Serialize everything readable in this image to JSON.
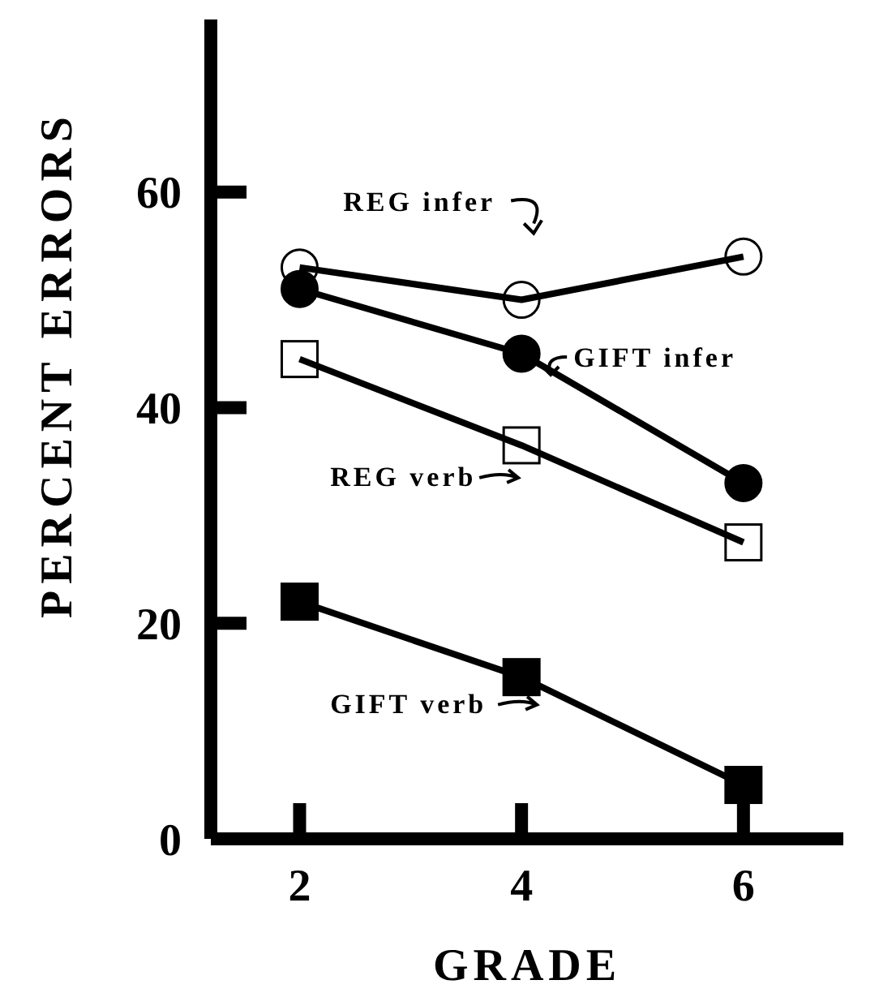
{
  "chart_data": {
    "type": "line",
    "xlabel": "GRADE",
    "ylabel": "PERCENT ERRORS",
    "x": [
      2,
      4,
      6
    ],
    "xlim": [
      1.2,
      6.9
    ],
    "xticks": [
      2,
      4,
      6
    ],
    "ylim": [
      0,
      76
    ],
    "yticks": [
      0,
      20,
      40,
      60
    ],
    "grid": false,
    "legend": "center",
    "line_style": "solid",
    "series": [
      {
        "name": "REG infer",
        "color": "#000000",
        "marker": "circle",
        "values": [
          53,
          50,
          54
        ]
      },
      {
        "name": "GIFT infer",
        "color": "#000000",
        "marker": "circle",
        "values": [
          51,
          45,
          33
        ]
      },
      {
        "name": "REG verb",
        "color": "#000000",
        "marker": "square",
        "values": [
          44.5,
          36.5,
          27.5
        ]
      },
      {
        "name": "GIFT verb",
        "color": "#000000",
        "marker": "square",
        "values": [
          22,
          15,
          5
        ]
      }
    ]
  }
}
